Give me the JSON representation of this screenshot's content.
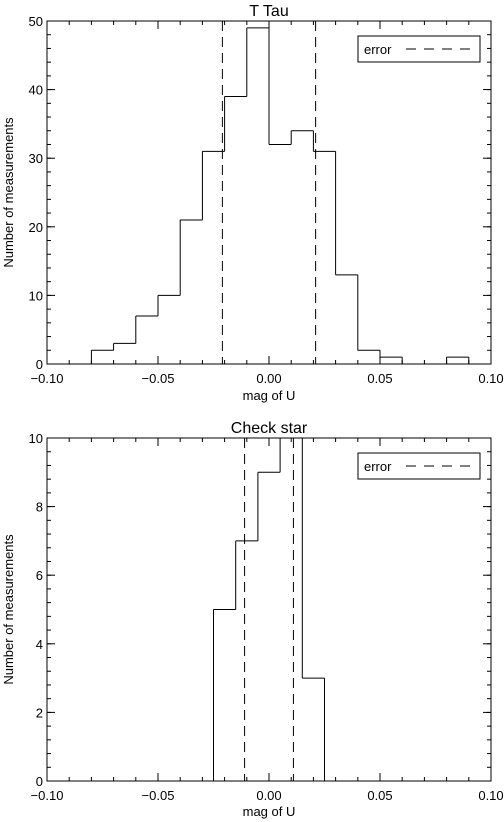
{
  "chart_data": [
    {
      "type": "bar",
      "style": "step histogram",
      "title": "T Tau",
      "xlabel": "mag of U",
      "ylabel": "Number of measurements",
      "xlim": [
        -0.1,
        0.1
      ],
      "ylim": [
        0,
        50
      ],
      "xticks": [
        -0.1,
        -0.05,
        0.0,
        0.05,
        0.1
      ],
      "xtick_labels": [
        "−0.10",
        "−0.05",
        "0.00",
        "0.05",
        "0.10"
      ],
      "yticks": [
        0,
        10,
        20,
        30,
        40,
        50
      ],
      "ytick_labels": [
        "0",
        "10",
        "20",
        "30",
        "40",
        "50"
      ],
      "bin_width": 0.01,
      "bin_centers": [
        -0.075,
        -0.065,
        -0.055,
        -0.045,
        -0.035,
        -0.025,
        -0.015,
        -0.005,
        0.005,
        0.015,
        0.025,
        0.035,
        0.045,
        0.055,
        0.065,
        0.075,
        0.085
      ],
      "values": [
        2,
        3,
        7,
        10,
        21,
        31,
        39,
        49,
        32,
        34,
        31,
        13,
        2,
        1,
        0,
        0,
        1
      ],
      "error_lines": [
        -0.021,
        0.021
      ],
      "legend": {
        "label": "error",
        "position": "top-right",
        "line_style": "dashed"
      },
      "grid": false
    },
    {
      "type": "bar",
      "style": "step histogram",
      "title": "Check star",
      "xlabel": "mag of U",
      "ylabel": "Number of measurements",
      "xlim": [
        -0.1,
        0.1
      ],
      "ylim": [
        0,
        10
      ],
      "xticks": [
        -0.1,
        -0.05,
        0.0,
        0.05,
        0.1
      ],
      "xtick_labels": [
        "−0.10",
        "−0.05",
        "0.00",
        "0.05",
        "0.10"
      ],
      "yticks": [
        0,
        2,
        4,
        6,
        8,
        10
      ],
      "ytick_labels": [
        "0",
        "2",
        "4",
        "6",
        "8",
        "10"
      ],
      "bin_width": 0.01,
      "bin_centers": [
        -0.02,
        -0.01,
        0.0,
        0.01,
        0.02
      ],
      "values": [
        5,
        7,
        9,
        10,
        3
      ],
      "error_lines": [
        -0.011,
        0.011
      ],
      "legend": {
        "label": "error",
        "position": "top-right",
        "line_style": "dashed"
      },
      "grid": false
    }
  ]
}
